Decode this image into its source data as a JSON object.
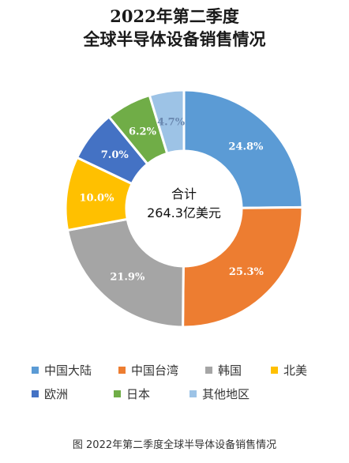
{
  "chart_data": {
    "type": "pie",
    "title": "2022年第二季度",
    "subtitle": "全球半导体设备销售情况",
    "center_label": "合计",
    "center_value": "264.3亿美元",
    "categories": [
      "中国大陆",
      "中国台湾",
      "韩国",
      "北美",
      "欧洲",
      "日本",
      "其他地区"
    ],
    "values": [
      24.8,
      25.3,
      21.9,
      10.0,
      7.0,
      6.2,
      4.7
    ],
    "value_labels": [
      "24.8%",
      "25.3%",
      "21.9%",
      "10.0%",
      "7.0%",
      "6.2%",
      "4.7%"
    ],
    "colors": [
      "#5b9bd5",
      "#ed7d31",
      "#a5a5a5",
      "#ffc000",
      "#4472c4",
      "#70ad47",
      "#9dc3e6"
    ],
    "label_colors": [
      "#ffffff",
      "#ffffff",
      "#ffffff",
      "#ffffff",
      "#ffffff",
      "#ffffff",
      "#6a88b0"
    ],
    "legend_position": "bottom"
  },
  "caption": "图  2022年第二季度全球半导体设备销售情况"
}
